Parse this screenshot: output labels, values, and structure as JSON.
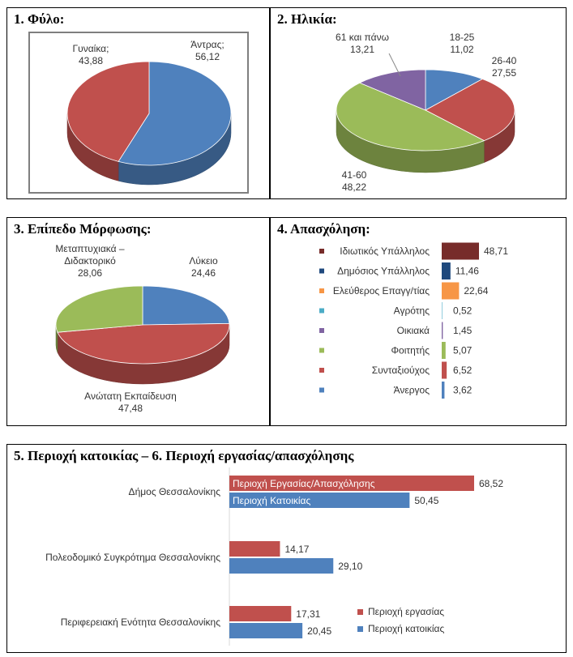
{
  "charts": [
    {
      "type": "pie",
      "title": "1. Φύλο:",
      "slices": [
        {
          "label": "Άντρας;",
          "value": "56,12",
          "v": 56.12,
          "color": "#4f81bd"
        },
        {
          "label": "Γυναίκα;",
          "value": "43,88",
          "v": 43.88,
          "color": "#c0504d"
        }
      ]
    },
    {
      "type": "pie",
      "title": "2. Ηλικία:",
      "slices": [
        {
          "label": "18-25",
          "value": "11,02",
          "v": 11.02,
          "color": "#4f81bd"
        },
        {
          "label": "26-40",
          "value": "27,55",
          "v": 27.55,
          "color": "#c0504d"
        },
        {
          "label": "41-60",
          "value": "48,22",
          "v": 48.22,
          "color": "#9bbb59"
        },
        {
          "label": "61 και πάνω",
          "value": "13,21",
          "v": 13.21,
          "color": "#8064a2"
        }
      ]
    },
    {
      "type": "pie",
      "title": "3. Επίπεδο Μόρφωσης:",
      "slices": [
        {
          "label": "Λύκειο",
          "value": "24,46",
          "v": 24.46,
          "color": "#4f81bd"
        },
        {
          "label": "Ανώτατη Εκπαίδευση",
          "value": "47,48",
          "v": 47.48,
          "color": "#c0504d"
        },
        {
          "label": "Μεταπτυχιακά –\nΔιδακτορικό",
          "value": "28,06",
          "v": 28.06,
          "color": "#9bbb59"
        }
      ]
    },
    {
      "type": "bar",
      "title": "4. Απασχόληση:",
      "categories": [
        "Ιδιωτικός Υπάλληλος",
        "Δημόσιος Υπάλληλος",
        "Ελεύθερος Επαγγ/τίας",
        "Αγρότης",
        "Οικιακά",
        "Φοιτητής",
        "Συνταξιούχος",
        "Άνεργος"
      ],
      "values": [
        48.71,
        11.46,
        22.64,
        0.52,
        1.45,
        5.07,
        6.52,
        3.62
      ],
      "labels": [
        "48,71",
        "11,46",
        "22,64",
        "0,52",
        "1,45",
        "5,07",
        "6,52",
        "3,62"
      ],
      "colors": [
        "#772c2a",
        "#1f497d",
        "#f79646",
        "#4bacc6",
        "#8064a2",
        "#9bbb59",
        "#c0504d",
        "#4f81bd"
      ],
      "max": 48.71
    },
    {
      "type": "bar",
      "title": "5. Περιοχή κατοικίας  –  6. Περιοχή εργασίας/απασχόλησης",
      "categories": [
        "Δήμος Θεσσαλονίκης",
        "Πολεοδομικό Συγκρότημα Θεσσαλονίκης",
        "Περιφερειακή Ενότητα Θεσσαλονίκης"
      ],
      "series": [
        {
          "name": "Περιοχή εργασίας",
          "values": [
            68.52,
            14.17,
            17.31
          ],
          "labels": [
            "68,52",
            "14,17",
            "17,31"
          ],
          "color": "#c0504d"
        },
        {
          "name": "Περιοχή κατοικίας",
          "values": [
            50.45,
            29.1,
            20.45
          ],
          "labels": [
            "50,45",
            "29,10",
            "20,45"
          ],
          "color": "#4f81bd"
        }
      ],
      "inbar": [
        "Περιοχή Εργασίας/Απασχόλησης",
        "Περιοχή Κατοικίας"
      ],
      "max": 68.52
    }
  ]
}
